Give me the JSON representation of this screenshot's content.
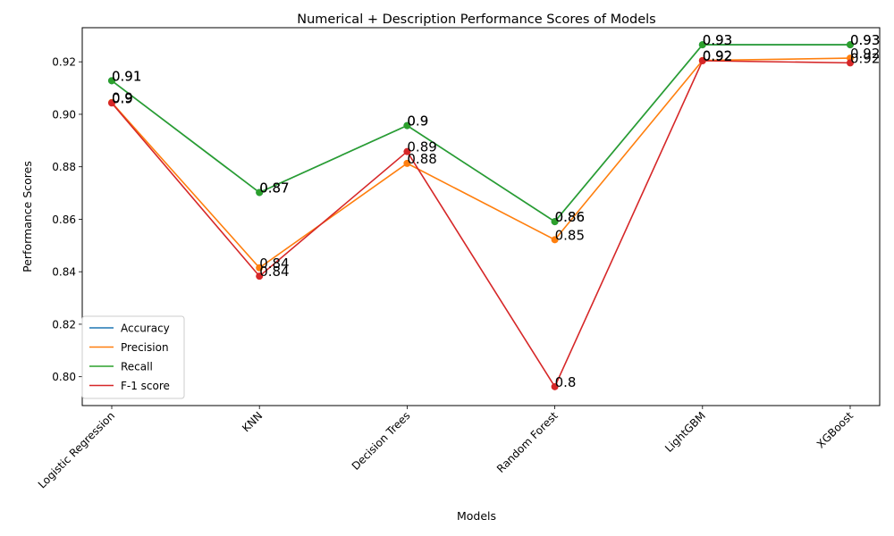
{
  "chart_data": {
    "type": "line",
    "title": "Numerical + Description Performance Scores of Models",
    "xlabel": "Models",
    "ylabel": "Performance Scores",
    "categories": [
      "Logistic Regression",
      "KNN",
      "Decision Trees",
      "Random Forest",
      "LightGBM",
      "XGBoost"
    ],
    "ylim": [
      0.789,
      0.933
    ],
    "yticks": [
      0.8,
      0.82,
      0.84,
      0.86,
      0.88,
      0.9,
      0.92
    ],
    "ytick_labels": [
      "0.80",
      "0.82",
      "0.84",
      "0.86",
      "0.88",
      "0.90",
      "0.92"
    ],
    "grid": false,
    "legend_position": "lower-left",
    "series": [
      {
        "name": "Accuracy",
        "color": "#1f77b4",
        "values": [
          0.9128,
          0.8702,
          0.8957,
          0.8591,
          0.9265,
          0.9265
        ],
        "labels": [
          "0.91",
          "0.87",
          "0.9",
          "0.86",
          "0.93",
          "0.93"
        ]
      },
      {
        "name": "Precision",
        "color": "#ff7f0e",
        "values": [
          0.9045,
          0.8415,
          0.8813,
          0.8522,
          0.9205,
          0.9214
        ],
        "labels": [
          "0.9",
          "0.84",
          "0.88",
          "0.85",
          "0.92",
          "0.92"
        ]
      },
      {
        "name": "Recall",
        "color": "#2ca02c",
        "values": [
          0.9128,
          0.8702,
          0.8957,
          0.8591,
          0.9265,
          0.9265
        ],
        "labels": [
          "0.91",
          "0.87",
          "0.9",
          "0.86",
          "0.93",
          "0.93"
        ]
      },
      {
        "name": "F-1 score",
        "color": "#d62728",
        "values": [
          0.9043,
          0.8383,
          0.8858,
          0.7962,
          0.9204,
          0.9196
        ],
        "labels": [
          "0.9",
          "0.84",
          "0.89",
          "0.8",
          "0.92",
          "0.92"
        ]
      }
    ]
  }
}
